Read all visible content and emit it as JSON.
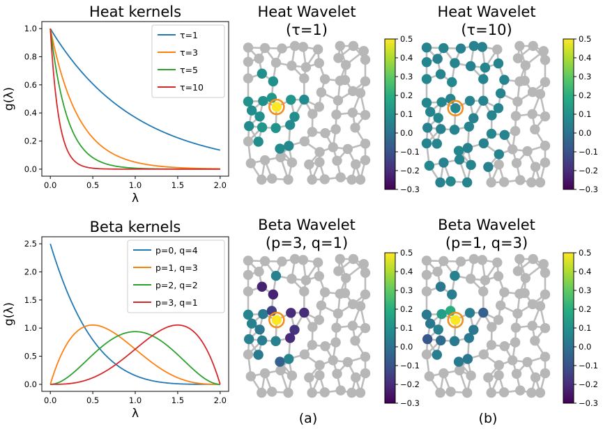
{
  "colors": {
    "c1": "#1f77b4",
    "c2": "#ff7f0e",
    "c3": "#2ca02c",
    "c4": "#d62728",
    "edge": "#bcbcbc",
    "node": "#b7b7b7",
    "highlight": "#f28e1c"
  },
  "chart_data": [
    {
      "type": "line",
      "title": "Heat kernels",
      "xlabel": "λ",
      "ylabel": "g(λ)",
      "xlim": [
        -0.1,
        2.1
      ],
      "ylim": [
        -0.05,
        1.05
      ],
      "xticks": [
        "0.0",
        "0.5",
        "1.0",
        "1.5",
        "2.0"
      ],
      "yticks": [
        "0.0",
        "0.2",
        "0.4",
        "0.6",
        "0.8",
        "1.0"
      ],
      "kernel": "heat",
      "legend_position": "top-right",
      "series": [
        {
          "name": "τ=1",
          "tau": 1
        },
        {
          "name": "τ=3",
          "tau": 3
        },
        {
          "name": "τ=5",
          "tau": 5
        },
        {
          "name": "τ=10",
          "tau": 10
        }
      ]
    },
    {
      "type": "line",
      "title": "Beta kernels",
      "xlabel": "λ",
      "ylabel": "g(λ)",
      "xlim": [
        -0.1,
        2.1
      ],
      "ylim": [
        -0.125,
        2.625
      ],
      "xticks": [
        "0.0",
        "0.5",
        "1.0",
        "1.5",
        "2.0"
      ],
      "yticks": [
        "0.0",
        "0.5",
        "1.0",
        "1.5",
        "2.0",
        "2.5"
      ],
      "kernel": "beta",
      "legend_position": "top-right",
      "series": [
        {
          "name": "p=0, q=4",
          "p": 0,
          "q": 4
        },
        {
          "name": "p=1, q=3",
          "p": 1,
          "q": 3
        },
        {
          "name": "p=2, q=2",
          "p": 2,
          "q": 2
        },
        {
          "name": "p=3, q=1",
          "p": 3,
          "q": 1
        }
      ]
    },
    {
      "type": "heatmap",
      "title": "Heat Wavelet",
      "subtitle": "(τ=1)",
      "colorbar": {
        "min": -0.3,
        "max": 0.5,
        "ticks": [
          "0.5",
          "0.4",
          "0.3",
          "0.2",
          "0.1",
          "0.0",
          "−0.1",
          "−0.2",
          "−0.3"
        ]
      }
    },
    {
      "type": "heatmap",
      "title": "Heat Wavelet",
      "subtitle": "(τ=10)",
      "colorbar": {
        "min": -0.3,
        "max": 0.5,
        "ticks": [
          "0.5",
          "0.4",
          "0.3",
          "0.2",
          "0.1",
          "0.0",
          "−0.1",
          "−0.2",
          "−0.3"
        ]
      }
    },
    {
      "type": "heatmap",
      "title": "Beta Wavelet",
      "subtitle": "(p=3, q=1)",
      "colorbar": {
        "min": -0.3,
        "max": 0.5,
        "ticks": [
          "0.5",
          "0.4",
          "0.3",
          "0.2",
          "0.1",
          "0.0",
          "−0.1",
          "−0.2",
          "−0.3"
        ]
      }
    },
    {
      "type": "heatmap",
      "title": "Beta Wavelet",
      "subtitle": "(p=1, q=3)",
      "colorbar": {
        "min": -0.3,
        "max": 0.5,
        "ticks": [
          "0.5",
          "0.4",
          "0.3",
          "0.2",
          "0.1",
          "0.0",
          "−0.1",
          "−0.2",
          "−0.3"
        ]
      }
    }
  ],
  "wavelet_values": {
    "heat_t1": [
      0.5,
      0.12,
      0.1,
      0.12,
      0.11,
      0.1,
      0.09,
      0.08,
      0.1,
      0.12,
      0.09,
      0.08,
      0.11,
      0.1,
      0.08,
      0.09,
      0.07,
      0.08
    ],
    "heat_t10": [
      0.07,
      0.06,
      0.07,
      0.06,
      0.06,
      0.07,
      0.05,
      0.06,
      0.07,
      0.05,
      0.06,
      0.06,
      0.07,
      0.06,
      0.05,
      0.06,
      0.05,
      0.07,
      0.06,
      0.06,
      0.05,
      0.07,
      0.06,
      0.05,
      0.06,
      0.06,
      0.07,
      0.05,
      0.06,
      0.06,
      0.05,
      0.07,
      0.06,
      0.05,
      0.06,
      0.06,
      0.07,
      0.05,
      0.06,
      0.06,
      0.05,
      0.06,
      0.06,
      0.05,
      0.06,
      0.07,
      0.06,
      0.05
    ],
    "beta_p3q1": [
      0.5,
      -0.15,
      0.03,
      -0.2,
      0.05,
      0.02,
      -0.18,
      -0.2,
      -0.22,
      0.04,
      0.05,
      -0.2,
      0.06,
      -0.22,
      0.05,
      0.03,
      0.06,
      -0.05,
      0.05
    ],
    "beta_p1q3": [
      0.5,
      0.2,
      0.15,
      0.04,
      0.03,
      0.05,
      0.02,
      0.03,
      0.04,
      -0.02,
      0.02,
      -0.05,
      0.03,
      0.02,
      -0.08,
      0.04,
      0.02,
      0.03,
      0.05
    ]
  },
  "panel_labels": [
    "(a)",
    "(b)"
  ]
}
